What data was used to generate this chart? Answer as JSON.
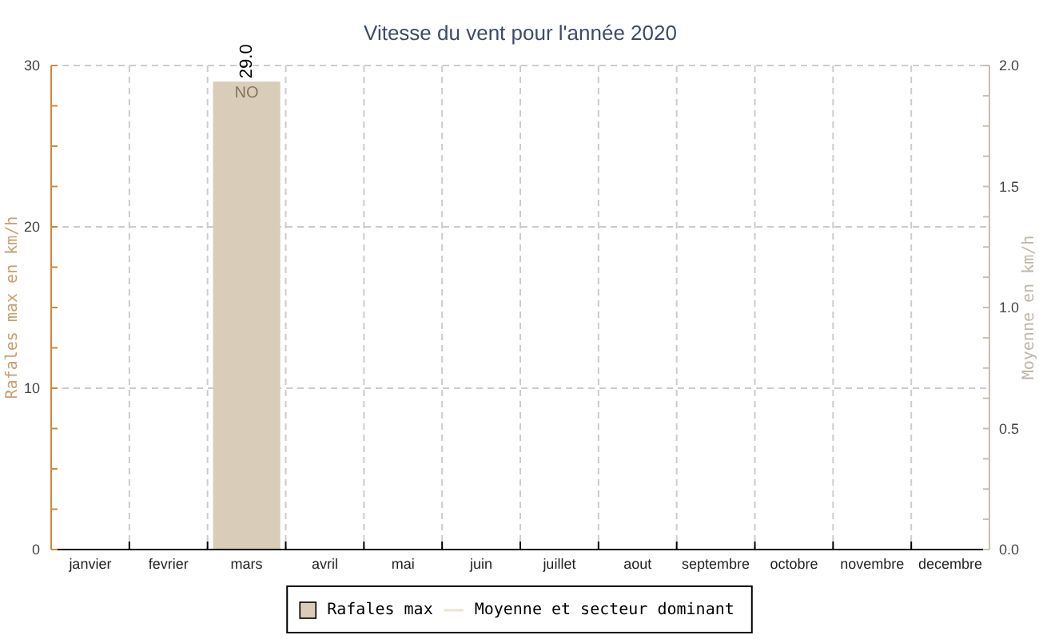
{
  "chart_data": {
    "type": "bar",
    "title": "Vitesse du vent pour l'année 2020",
    "categories": [
      "janvier",
      "fevrier",
      "mars",
      "avril",
      "mai",
      "juin",
      "juillet",
      "aout",
      "septembre",
      "octobre",
      "novembre",
      "decembre"
    ],
    "ylabel": "Rafales max en km/h",
    "y2label": "Moyenne en km/h",
    "ylim": [
      0,
      30
    ],
    "yticks": [
      0,
      {
        "value": 2.5,
        "label": null
      },
      {
        "value": 5,
        "label": null
      },
      {
        "value": 7.5,
        "label": null
      },
      10,
      {
        "value": 12.5,
        "label": null
      },
      {
        "value": 15,
        "label": null
      },
      {
        "value": 17.5,
        "label": null
      },
      20,
      {
        "value": 22.5,
        "label": null
      },
      {
        "value": 25,
        "label": null
      },
      {
        "value": 27.5,
        "label": null
      },
      30
    ],
    "y2lim": [
      0,
      2
    ],
    "y2ticks": [
      {
        "value": 0,
        "label": "0.0"
      },
      {
        "value": 0.125,
        "label": null
      },
      {
        "value": 0.25,
        "label": null
      },
      {
        "value": 0.375,
        "label": null
      },
      {
        "value": 0.5,
        "label": "0.5"
      },
      {
        "value": 0.625,
        "label": null
      },
      {
        "value": 0.75,
        "label": null
      },
      {
        "value": 0.875,
        "label": null
      },
      {
        "value": 1,
        "label": "1.0"
      },
      {
        "value": 1.125,
        "label": null
      },
      {
        "value": 1.25,
        "label": null
      },
      {
        "value": 1.375,
        "label": null
      },
      {
        "value": 1.5,
        "label": "1.5"
      },
      {
        "value": 1.625,
        "label": null
      },
      {
        "value": 1.75,
        "label": null
      },
      {
        "value": 1.875,
        "label": null
      },
      {
        "value": 2,
        "label": "2.0"
      }
    ],
    "grid": true,
    "legend": "bottom",
    "annotations": [
      {
        "text": "NO",
        "x": "mars",
        "y": 29
      }
    ],
    "series": [
      {
        "name": "Rafales max",
        "color": "#d9cdb9",
        "values": [
          null,
          null,
          29,
          null,
          null,
          null,
          null,
          null,
          null,
          null,
          null,
          null
        ],
        "value_labels": [
          null,
          null,
          "29.0",
          null,
          null,
          null,
          null,
          null,
          null,
          null,
          null,
          null
        ]
      },
      {
        "name": "Moyenne et secteur dominant",
        "type": "line",
        "axis": "y2",
        "color": "#ece3d3",
        "values": [
          null,
          null,
          null,
          null,
          null,
          null,
          null,
          null,
          null,
          null,
          null,
          null
        ]
      }
    ]
  }
}
